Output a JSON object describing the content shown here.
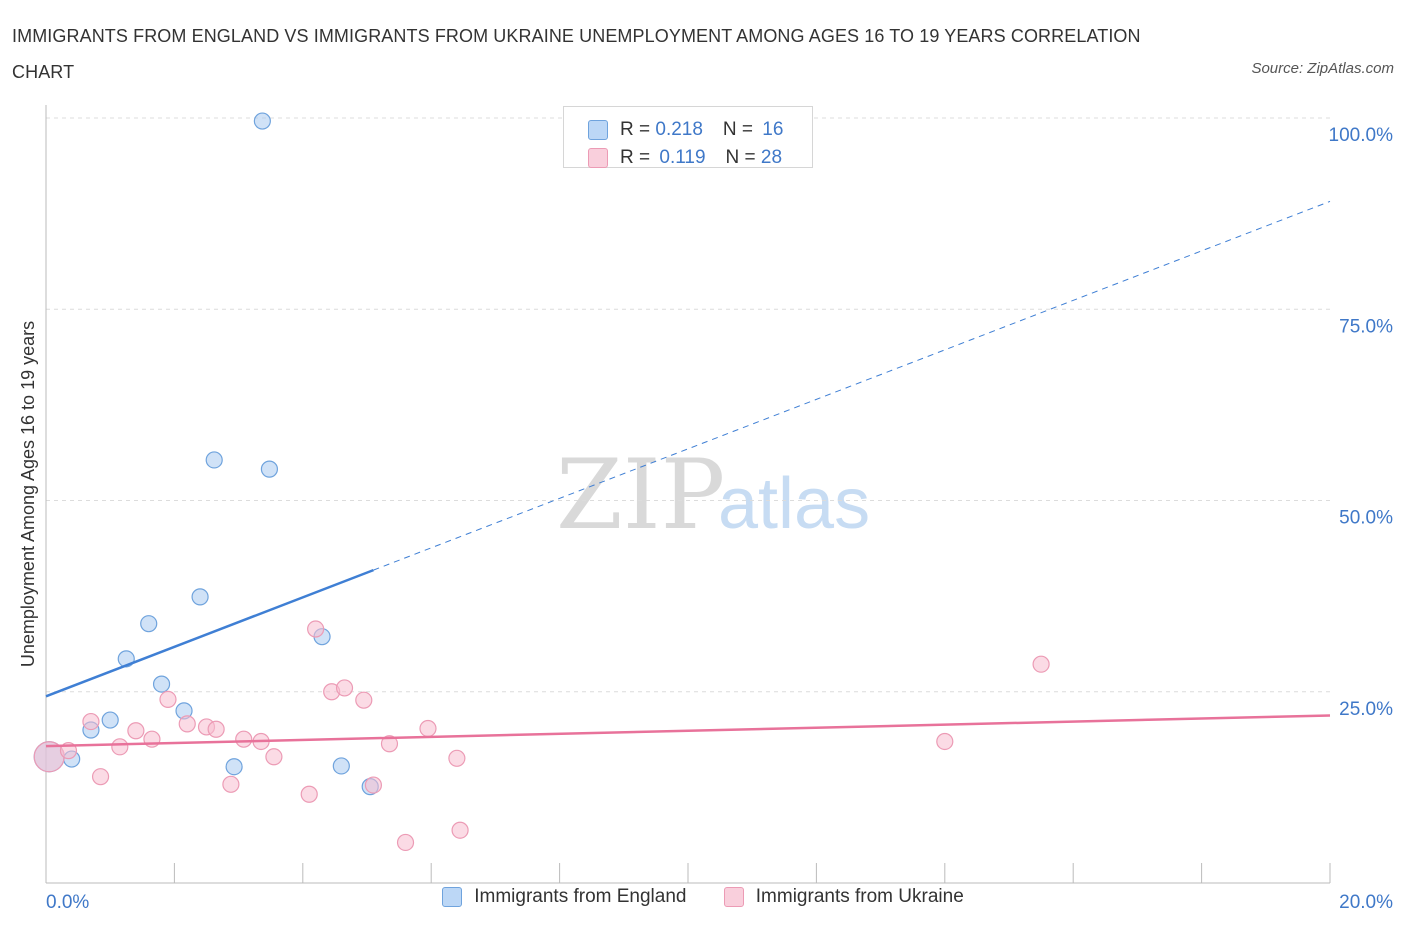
{
  "title": "IMMIGRANTS FROM ENGLAND VS IMMIGRANTS FROM UKRAINE UNEMPLOYMENT AMONG AGES 16 TO 19 YEARS CORRELATION CHART",
  "source": "Source: ZipAtlas.com",
  "watermark": {
    "zip": "ZIP",
    "atlas": "atlas"
  },
  "colors": {
    "england": "#3f7fd4",
    "ukraine": "#e8729a",
    "axis_label": "#3f78c8"
  },
  "stats": [
    {
      "r_label": "R = ",
      "r_value": "0.218",
      "n_label": "N = ",
      "n_value": "16"
    },
    {
      "r_label": "R = ",
      "r_value": "0.119",
      "n_label": "N = ",
      "n_value": "28"
    }
  ],
  "legend": [
    "Immigrants from England",
    "Immigrants from Ukraine"
  ],
  "chart_data": {
    "type": "scatter",
    "xlabel": "",
    "ylabel": "Unemployment Among Ages 16 to 19 years",
    "xlim": [
      0,
      20
    ],
    "ylim": [
      0,
      100
    ],
    "x_tick_labels": [
      {
        "value": 0,
        "label": "0.0%"
      },
      {
        "value": 20,
        "label": "20.0%"
      }
    ],
    "y_tick_labels": [
      {
        "value": 25,
        "label": "25.0%"
      },
      {
        "value": 50,
        "label": "50.0%"
      },
      {
        "value": 75,
        "label": "75.0%"
      },
      {
        "value": 100,
        "label": "100.0%"
      }
    ],
    "series": [
      {
        "name": "Immigrants from England",
        "points": [
          [
            0.05,
            16.5
          ],
          [
            0.4,
            16.2
          ],
          [
            0.7,
            20.0
          ],
          [
            1.0,
            21.3
          ],
          [
            1.25,
            29.3
          ],
          [
            1.6,
            33.9
          ],
          [
            1.8,
            26.0
          ],
          [
            2.15,
            22.5
          ],
          [
            2.4,
            37.4
          ],
          [
            2.62,
            55.3
          ],
          [
            2.93,
            15.2
          ],
          [
            3.37,
            99.6
          ],
          [
            3.48,
            54.1
          ],
          [
            4.3,
            32.2
          ],
          [
            4.6,
            15.3
          ],
          [
            5.05,
            12.6
          ]
        ],
        "trend": {
          "x": [
            0,
            20
          ],
          "y": [
            24.4,
            89.1
          ],
          "solid_until_x": 5.1
        }
      },
      {
        "name": "Immigrants from Ukraine",
        "points": [
          [
            0.05,
            16.5
          ],
          [
            0.35,
            17.3
          ],
          [
            0.7,
            21.1
          ],
          [
            0.85,
            13.9
          ],
          [
            1.15,
            17.8
          ],
          [
            1.4,
            19.9
          ],
          [
            1.65,
            18.8
          ],
          [
            1.9,
            24.0
          ],
          [
            2.2,
            20.8
          ],
          [
            2.5,
            20.4
          ],
          [
            2.65,
            20.1
          ],
          [
            2.88,
            12.9
          ],
          [
            3.08,
            18.8
          ],
          [
            3.35,
            18.5
          ],
          [
            3.55,
            16.5
          ],
          [
            4.1,
            11.6
          ],
          [
            4.2,
            33.2
          ],
          [
            4.45,
            25.0
          ],
          [
            4.65,
            25.5
          ],
          [
            4.95,
            23.9
          ],
          [
            5.1,
            12.8
          ],
          [
            5.35,
            18.2
          ],
          [
            5.6,
            5.3
          ],
          [
            5.95,
            20.2
          ],
          [
            6.4,
            16.3
          ],
          [
            6.45,
            6.9
          ],
          [
            14.0,
            18.5
          ],
          [
            15.5,
            28.6
          ]
        ],
        "trend": {
          "x": [
            0,
            20
          ],
          "y": [
            17.9,
            21.9
          ]
        }
      }
    ]
  }
}
